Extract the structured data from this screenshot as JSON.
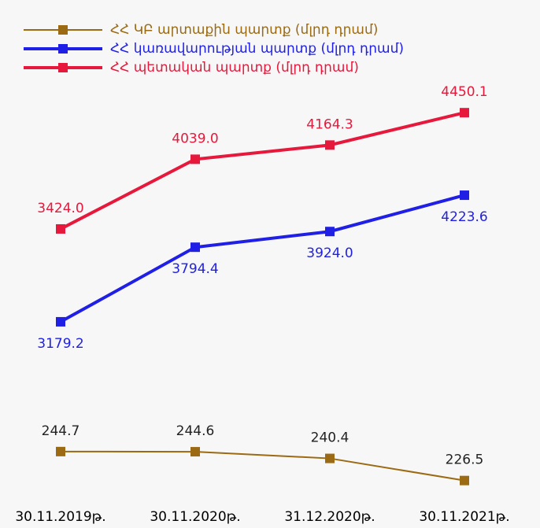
{
  "chart_data": {
    "type": "line",
    "categories": [
      "30.11.2019թ.",
      "30.11.2020թ.",
      "31.12.2020թ.",
      "30.11.2021թ."
    ],
    "series": [
      {
        "name": "ՀՀ ԿԲ արտաքին պարտք (մլրդ դրամ)",
        "color": "#9b6a12",
        "values": [
          244.7,
          244.6,
          240.4,
          226.5
        ],
        "ylim": [
          212,
          479
        ],
        "label_side": "above"
      },
      {
        "name": "ՀՀ կառավարության պարտք (մլրդ դրամ)",
        "color": "#1f1fe6",
        "values": [
          3179.2,
          3794.4,
          3924.0,
          4223.6
        ],
        "value_labels": [
          "3179.2",
          "3794.4",
          "3924.0",
          "4223.6"
        ],
        "ylim": [
          1679,
          5185
        ],
        "label_side": "below"
      },
      {
        "name": "ՀՀ պետական պարտք (մլրդ դրամ)",
        "color": "#e6193c",
        "values": [
          3424.0,
          4039.0,
          4164.3,
          4450.1
        ],
        "value_labels": [
          "3424.0",
          "4039.0",
          "4164.3",
          "4450.1"
        ],
        "ylim": [
          1000,
          4750
        ],
        "label_side": "above"
      }
    ]
  }
}
